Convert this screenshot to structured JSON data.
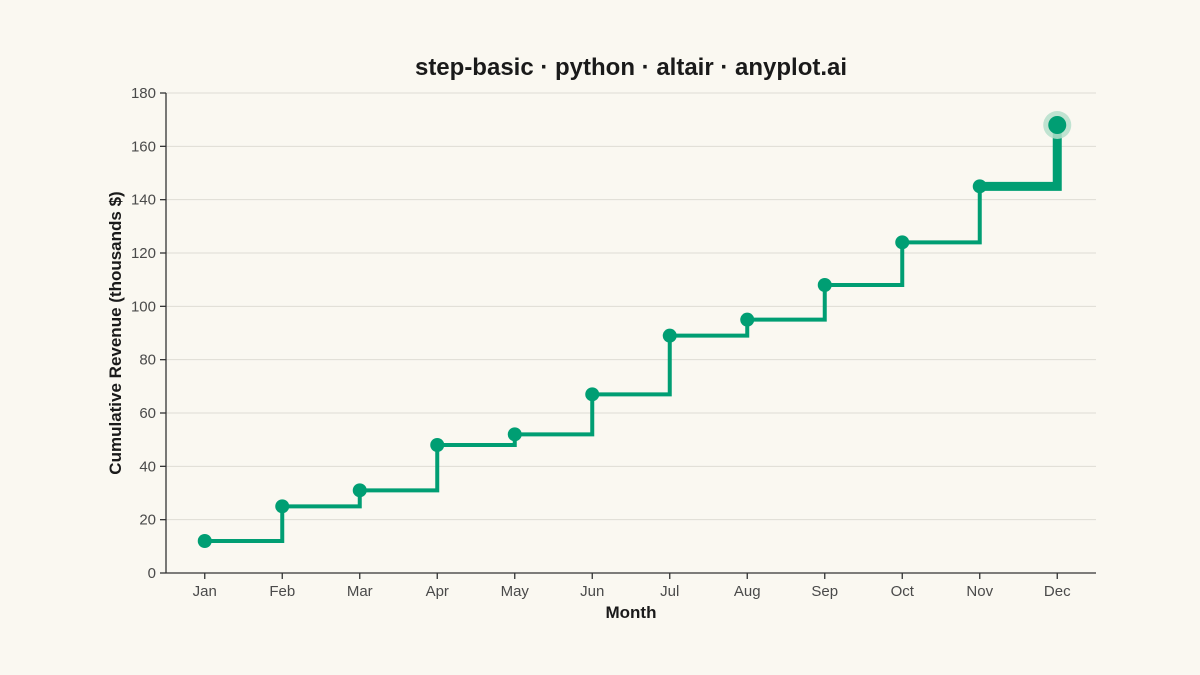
{
  "chart_data": {
    "type": "line",
    "interpolation": "step-after",
    "title": "step-basic · python · altair · anyplot.ai",
    "xlabel": "Month",
    "ylabel": "Cumulative Revenue (thousands $)",
    "categories": [
      "Jan",
      "Feb",
      "Mar",
      "Apr",
      "May",
      "Jun",
      "Jul",
      "Aug",
      "Sep",
      "Oct",
      "Nov",
      "Dec"
    ],
    "values": [
      12,
      25,
      31,
      48,
      52,
      67,
      89,
      95,
      108,
      124,
      145,
      168
    ],
    "ylim": [
      0,
      180
    ],
    "yticks": [
      0,
      20,
      40,
      60,
      80,
      100,
      120,
      140,
      160,
      180
    ],
    "grid": true,
    "legend": "none",
    "colors": {
      "line": "#009E73",
      "background": "#FAF8F1",
      "highlight": "#B5DFCB"
    },
    "highlight": "last point and final segment emphasized"
  }
}
